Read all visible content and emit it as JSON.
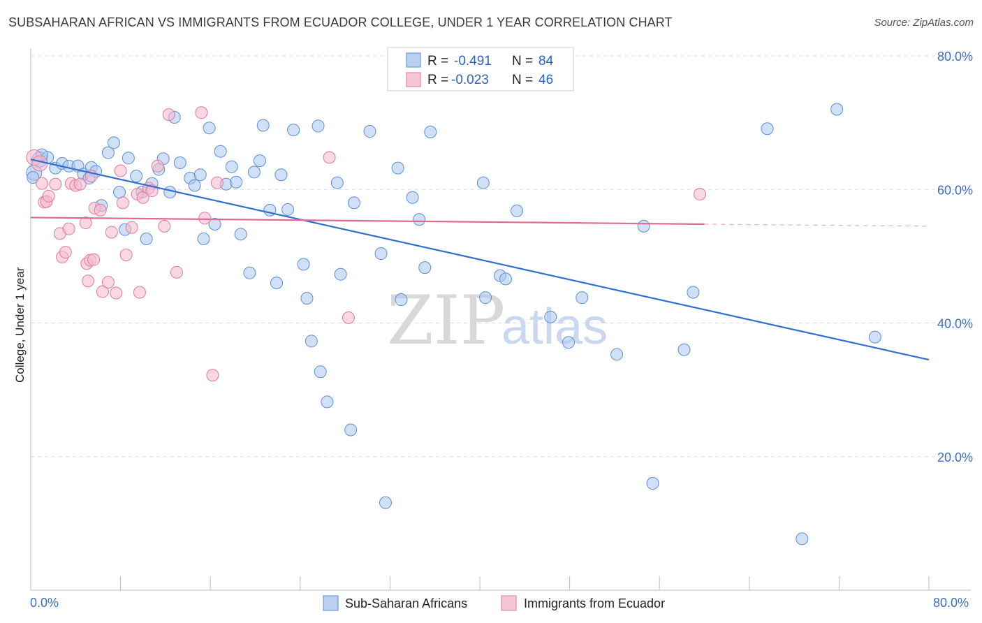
{
  "header": {
    "title": "SUBSAHARAN AFRICAN VS IMMIGRANTS FROM ECUADOR COLLEGE, UNDER 1 YEAR CORRELATION CHART",
    "source": "Source: ZipAtlas.com"
  },
  "watermark": {
    "zip": "ZIP",
    "atlas": "atlas"
  },
  "legend": {
    "rows": [
      {
        "r_label": "R =",
        "r_value": "-0.491",
        "n_label": "N =",
        "n_value": "84"
      },
      {
        "r_label": "R =",
        "r_value": "-0.023",
        "n_label": "N =",
        "n_value": "46"
      }
    ]
  },
  "bottom_legend": {
    "items": [
      {
        "label": "Sub-Saharan Africans"
      },
      {
        "label": "Immigrants from Ecuador"
      }
    ]
  },
  "colors": {
    "blue_fill": "#aac6ef",
    "blue_stroke": "#5b8fd6",
    "blue_line": "#2f6fd0",
    "pink_fill": "#f5b8cc",
    "pink_stroke": "#e07a9e",
    "pink_line": "#e06a94",
    "tick_label": "#3a6fc4",
    "grid": "#dcdcdc"
  },
  "chart_data": {
    "type": "scatter",
    "title": "SUBSAHARAN AFRICAN VS IMMIGRANTS FROM ECUADOR COLLEGE, UNDER 1 YEAR CORRELATION CHART",
    "ylabel": "College, Under 1 year",
    "xlabel": "",
    "xlim": [
      0,
      80
    ],
    "ylim": [
      0,
      80
    ],
    "x_ticks": [
      "0.0%",
      "80.0%"
    ],
    "y_ticks": [
      "20.0%",
      "40.0%",
      "60.0%",
      "80.0%"
    ],
    "y_tick_values": [
      20,
      40,
      60,
      80
    ],
    "legend_position": "top-center",
    "series": [
      {
        "name": "Sub-Saharan Africans",
        "color": "#5b8fd6",
        "r": -0.491,
        "n": 84,
        "trend": {
          "x": [
            0,
            80
          ],
          "y": [
            64.5,
            34.5
          ],
          "dashed_from": null
        },
        "points": [
          [
            0.3,
            62.5
          ],
          [
            0.8,
            64.5
          ],
          [
            1.5,
            64.8
          ],
          [
            2.2,
            63.2
          ],
          [
            2.8,
            63.9
          ],
          [
            3.4,
            63.5
          ],
          [
            4.2,
            63.5
          ],
          [
            4.7,
            62.3
          ],
          [
            5.2,
            61.7
          ],
          [
            5.4,
            63.3
          ],
          [
            5.8,
            62.7
          ],
          [
            6.3,
            57.6
          ],
          [
            6.9,
            65.5
          ],
          [
            7.4,
            67.0
          ],
          [
            7.9,
            59.6
          ],
          [
            8.4,
            54.0
          ],
          [
            8.7,
            64.7
          ],
          [
            9.4,
            62.0
          ],
          [
            9.9,
            59.6
          ],
          [
            10.3,
            52.6
          ],
          [
            10.8,
            60.9
          ],
          [
            11.4,
            63.0
          ],
          [
            11.8,
            64.6
          ],
          [
            12.4,
            59.6
          ],
          [
            12.8,
            70.8
          ],
          [
            13.3,
            64.0
          ],
          [
            14.2,
            61.7
          ],
          [
            14.6,
            60.6
          ],
          [
            15.1,
            62.2
          ],
          [
            15.4,
            52.6
          ],
          [
            15.9,
            69.2
          ],
          [
            16.4,
            54.8
          ],
          [
            16.9,
            65.7
          ],
          [
            17.4,
            60.8
          ],
          [
            17.9,
            63.4
          ],
          [
            18.3,
            61.1
          ],
          [
            18.7,
            53.3
          ],
          [
            19.5,
            47.5
          ],
          [
            19.9,
            62.6
          ],
          [
            20.4,
            64.3
          ],
          [
            20.7,
            69.6
          ],
          [
            21.3,
            56.9
          ],
          [
            21.9,
            46.0
          ],
          [
            22.3,
            62.2
          ],
          [
            22.9,
            57.0
          ],
          [
            23.4,
            68.9
          ],
          [
            24.3,
            48.8
          ],
          [
            24.6,
            43.7
          ],
          [
            25.0,
            37.3
          ],
          [
            25.6,
            69.5
          ],
          [
            25.8,
            32.7
          ],
          [
            26.4,
            28.2
          ],
          [
            27.3,
            61.0
          ],
          [
            27.6,
            47.3
          ],
          [
            28.5,
            24.0
          ],
          [
            28.8,
            58.0
          ],
          [
            30.2,
            68.7
          ],
          [
            31.2,
            50.4
          ],
          [
            31.6,
            13.1
          ],
          [
            32.7,
            63.2
          ],
          [
            33.0,
            43.5
          ],
          [
            34.0,
            58.8
          ],
          [
            34.6,
            55.5
          ],
          [
            35.1,
            48.3
          ],
          [
            35.6,
            68.6
          ],
          [
            40.3,
            61.0
          ],
          [
            40.5,
            43.8
          ],
          [
            41.8,
            47.1
          ],
          [
            42.3,
            46.6
          ],
          [
            43.3,
            56.8
          ],
          [
            46.3,
            40.9
          ],
          [
            47.9,
            37.1
          ],
          [
            49.1,
            43.8
          ],
          [
            52.2,
            35.3
          ],
          [
            54.6,
            54.5
          ],
          [
            55.4,
            16.0
          ],
          [
            58.2,
            36.0
          ],
          [
            59.0,
            44.6
          ],
          [
            65.6,
            69.1
          ],
          [
            68.7,
            7.7
          ],
          [
            71.8,
            72.0
          ],
          [
            75.2,
            37.9
          ],
          [
            0.2,
            61.8
          ],
          [
            1.0,
            65.2
          ]
        ]
      },
      {
        "name": "Immigrants from Ecuador",
        "color": "#e07a9e",
        "r": -0.023,
        "n": 46,
        "trend": {
          "x": [
            0,
            60,
            80
          ],
          "y": [
            55.8,
            54.8,
            54.5
          ],
          "dashed_from": 60
        },
        "points": [
          [
            0.3,
            64.8
          ],
          [
            0.8,
            63.9
          ],
          [
            1.0,
            60.9
          ],
          [
            1.2,
            58.1
          ],
          [
            1.4,
            58.2
          ],
          [
            1.6,
            59.0
          ],
          [
            2.2,
            60.8
          ],
          [
            2.6,
            53.4
          ],
          [
            2.8,
            49.9
          ],
          [
            3.1,
            50.6
          ],
          [
            3.4,
            54.1
          ],
          [
            3.6,
            60.9
          ],
          [
            4.0,
            60.6
          ],
          [
            4.4,
            60.8
          ],
          [
            4.9,
            55.0
          ],
          [
            5.0,
            48.9
          ],
          [
            5.1,
            46.3
          ],
          [
            5.3,
            49.4
          ],
          [
            5.4,
            62.0
          ],
          [
            5.6,
            49.5
          ],
          [
            5.7,
            57.2
          ],
          [
            6.2,
            56.9
          ],
          [
            6.4,
            44.7
          ],
          [
            6.9,
            46.1
          ],
          [
            7.2,
            53.6
          ],
          [
            7.6,
            44.5
          ],
          [
            8.0,
            62.8
          ],
          [
            8.2,
            58.0
          ],
          [
            8.5,
            50.2
          ],
          [
            9.0,
            54.3
          ],
          [
            9.5,
            59.3
          ],
          [
            9.7,
            44.6
          ],
          [
            10.0,
            58.8
          ],
          [
            10.5,
            60.2
          ],
          [
            10.8,
            59.8
          ],
          [
            11.3,
            63.5
          ],
          [
            11.9,
            54.5
          ],
          [
            12.3,
            71.2
          ],
          [
            13.0,
            47.6
          ],
          [
            15.2,
            71.5
          ],
          [
            15.5,
            55.7
          ],
          [
            16.2,
            32.2
          ],
          [
            16.6,
            61.0
          ],
          [
            26.6,
            64.8
          ],
          [
            28.3,
            40.8
          ],
          [
            59.6,
            59.3
          ]
        ]
      }
    ]
  }
}
